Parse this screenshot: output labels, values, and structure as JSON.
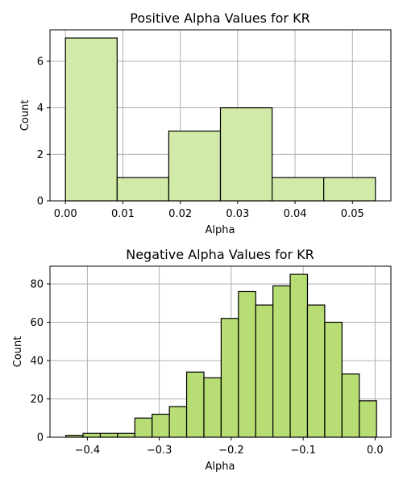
{
  "chart_data": [
    {
      "type": "bar",
      "title": "Positive Alpha Values for KR",
      "xlabel": "Alpha",
      "ylabel": "Count",
      "grid": true,
      "bar_color": "#d2eaa8",
      "edge_color": "#000000",
      "xlim": [
        -0.0027,
        0.0567
      ],
      "ylim": [
        0,
        7.35
      ],
      "xticks": [
        0.0,
        0.01,
        0.02,
        0.03,
        0.04,
        0.05
      ],
      "xtick_labels": [
        "0.00",
        "0.01",
        "0.02",
        "0.03",
        "0.04",
        "0.05"
      ],
      "yticks": [
        0,
        2,
        4,
        6
      ],
      "ytick_labels": [
        "0",
        "2",
        "4",
        "6"
      ],
      "bins": [
        {
          "x0": 0.0,
          "x1": 0.009,
          "value": 7
        },
        {
          "x0": 0.009,
          "x1": 0.018,
          "value": 1
        },
        {
          "x0": 0.018,
          "x1": 0.027,
          "value": 3
        },
        {
          "x0": 0.027,
          "x1": 0.036,
          "value": 4
        },
        {
          "x0": 0.036,
          "x1": 0.045,
          "value": 1
        },
        {
          "x0": 0.045,
          "x1": 0.054,
          "value": 1
        }
      ]
    },
    {
      "type": "bar",
      "title": "Negative Alpha Values for KR",
      "xlabel": "Alpha",
      "ylabel": "Count",
      "grid": true,
      "bar_color": "#b7dd74",
      "edge_color": "#000000",
      "xlim": [
        -0.452,
        0.022
      ],
      "ylim": [
        0,
        89.25
      ],
      "xticks": [
        -0.4,
        -0.3,
        -0.2,
        -0.1,
        0.0
      ],
      "xtick_labels": [
        "−0.4",
        "−0.3",
        "−0.2",
        "−0.1",
        "0.0"
      ],
      "yticks": [
        0,
        20,
        40,
        60,
        80
      ],
      "ytick_labels": [
        "0",
        "20",
        "40",
        "60",
        "80"
      ],
      "bins": [
        {
          "x0": -0.43,
          "x1": -0.406,
          "value": 1
        },
        {
          "x0": -0.406,
          "x1": -0.382,
          "value": 2
        },
        {
          "x0": -0.382,
          "x1": -0.358,
          "value": 2
        },
        {
          "x0": -0.358,
          "x1": -0.334,
          "value": 2
        },
        {
          "x0": -0.334,
          "x1": -0.31,
          "value": 10
        },
        {
          "x0": -0.31,
          "x1": -0.286,
          "value": 12
        },
        {
          "x0": -0.286,
          "x1": -0.262,
          "value": 16
        },
        {
          "x0": -0.262,
          "x1": -0.238,
          "value": 34
        },
        {
          "x0": -0.238,
          "x1": -0.214,
          "value": 31
        },
        {
          "x0": -0.214,
          "x1": -0.19,
          "value": 62
        },
        {
          "x0": -0.19,
          "x1": -0.166,
          "value": 76
        },
        {
          "x0": -0.166,
          "x1": -0.142,
          "value": 69
        },
        {
          "x0": -0.142,
          "x1": -0.118,
          "value": 79
        },
        {
          "x0": -0.118,
          "x1": -0.094,
          "value": 85
        },
        {
          "x0": -0.094,
          "x1": -0.07,
          "value": 69
        },
        {
          "x0": -0.07,
          "x1": -0.046,
          "value": 60
        },
        {
          "x0": -0.046,
          "x1": -0.022,
          "value": 33
        },
        {
          "x0": -0.022,
          "x1": 0.002,
          "value": 19
        }
      ]
    }
  ]
}
